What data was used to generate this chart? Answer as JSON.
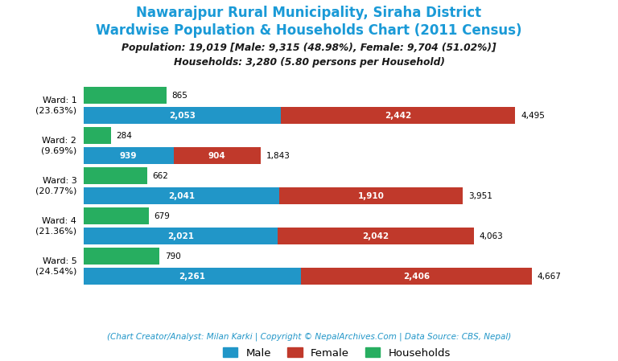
{
  "title_line1": "Nawarajpur Rural Municipality, Siraha District",
  "title_line2": "Wardwise Population & Households Chart (2011 Census)",
  "subtitle_line1": "Population: 19,019 [Male: 9,315 (48.98%), Female: 9,704 (51.02%)]",
  "subtitle_line2": "Households: 3,280 (5.80 persons per Household)",
  "footer": "(Chart Creator/Analyst: Milan Karki | Copyright © NepalArchives.Com | Data Source: CBS, Nepal)",
  "wards": [
    {
      "label": "Ward: 1\n(23.63%)",
      "male": 2053,
      "female": 2442,
      "households": 865,
      "total": 4495
    },
    {
      "label": "Ward: 2\n(9.69%)",
      "male": 939,
      "female": 904,
      "households": 284,
      "total": 1843
    },
    {
      "label": "Ward: 3\n(20.77%)",
      "male": 2041,
      "female": 1910,
      "households": 662,
      "total": 3951
    },
    {
      "label": "Ward: 4\n(21.36%)",
      "male": 2021,
      "female": 2042,
      "households": 679,
      "total": 4063
    },
    {
      "label": "Ward: 5\n(24.54%)",
      "male": 2261,
      "female": 2406,
      "households": 790,
      "total": 4667
    }
  ],
  "color_male": "#2196C8",
  "color_female": "#C0392B",
  "color_households": "#27AE60",
  "color_title": "#1A9AD7",
  "color_subtitle": "#1A1A1A",
  "color_footer": "#2196C8",
  "background_color": "#FFFFFF",
  "bar_height": 0.22,
  "bar_spacing": 0.52
}
